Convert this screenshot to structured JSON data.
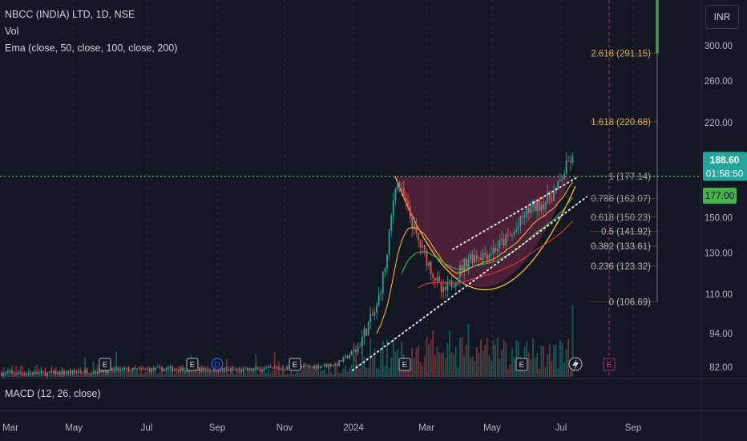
{
  "legend": {
    "symbol": "NBCC (INDIA) LTD, 1D, NSE",
    "volume": "Vol",
    "ema": "Ema (close, 50, close, 100, close, 200)"
  },
  "macd_label": "MACD (12, 26, close)",
  "currency": "INR",
  "price_badge": {
    "price": "188.60",
    "countdown": "01:58:50",
    "color": "#26a69a"
  },
  "level_badge": {
    "value": "177.00",
    "color": "#4caf50"
  },
  "event_markers": [
    "E",
    "E",
    "D",
    "E",
    "E",
    "E",
    "E"
  ],
  "colors": {
    "background": "#131722",
    "cup_fill": "#7b2a4a",
    "cup_curve": "#f0b23a",
    "ema50": "#f0b23a",
    "ema100": "#4caf50",
    "ema200": "#e0383e",
    "fib": "#d4a86a",
    "up": "#26a69a",
    "down": "#ef5350"
  },
  "chart_data": {
    "type": "candlestick",
    "x_ticks": [
      "Mar",
      "May",
      "Jul",
      "Sep",
      "Nov",
      "2024",
      "Mar",
      "May",
      "Jul",
      "Sep"
    ],
    "y_ticks": [
      "300.00",
      "260.00",
      "220.00",
      "150.00",
      "130.00",
      "110.00",
      "94.00",
      "82.00"
    ],
    "y_scale": "log",
    "y_range": [
      78,
      340
    ],
    "current_price": 188.6,
    "horizontal_level": 177.0,
    "fib_levels": [
      {
        "label": "2.618 (291.15)",
        "value": 291.15
      },
      {
        "label": "1.618 (220.68)",
        "value": 220.68
      },
      {
        "label": "1 (177.14)",
        "value": 177.14
      },
      {
        "label": "0.786 (162.07)",
        "value": 162.07
      },
      {
        "label": "0.618 (150.23)",
        "value": 150.23
      },
      {
        "label": "0.5 (141.92)",
        "value": 141.92
      },
      {
        "label": "0.382 (133.61)",
        "value": 133.61
      },
      {
        "label": "0.236 (123.32)",
        "value": 123.32
      },
      {
        "label": "0 (106.69)",
        "value": 106.69
      }
    ],
    "series": [
      {
        "name": "Ema 50",
        "values": []
      },
      {
        "name": "Ema 100",
        "values": []
      },
      {
        "name": "Ema 200",
        "values": []
      }
    ]
  }
}
